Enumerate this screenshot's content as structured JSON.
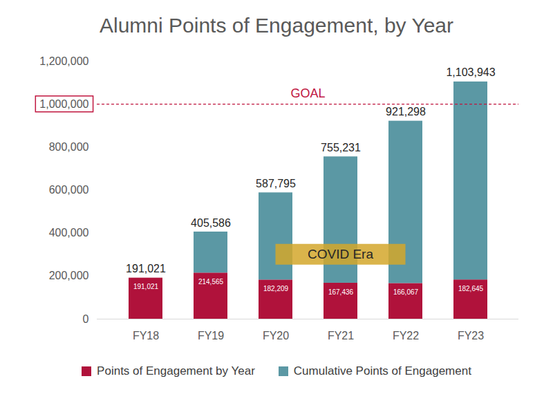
{
  "chart_data": {
    "type": "bar",
    "title": "Alumni Points of Engagement, by Year",
    "categories": [
      "FY18",
      "FY19",
      "FY20",
      "FY21",
      "FY22",
      "FY23"
    ],
    "series": [
      {
        "name": "Points of Engagement by Year",
        "color": "#b0123b",
        "values": [
          191021,
          214565,
          182209,
          167436,
          166067,
          182645
        ],
        "value_labels": [
          "191,021",
          "214,565",
          "182,209",
          "167,436",
          "166,067",
          "182,645"
        ]
      },
      {
        "name": "Cumulative Points of Engagement",
        "color": "#5b98a4",
        "values": [
          0,
          191021,
          405586,
          587795,
          755231,
          921298
        ]
      }
    ],
    "stacked": true,
    "data_labels": true,
    "total_labels": [
      "191,021",
      "405,586",
      "587,795",
      "755,231",
      "921,298",
      "1,103,943"
    ],
    "ylim": [
      0,
      1200000
    ],
    "yticks": [
      0,
      {
        "value": 200000,
        "label": "200,000"
      },
      {
        "value": 400000,
        "label": "400,000"
      },
      {
        "value": 600000,
        "label": "600,000"
      },
      {
        "value": 800000,
        "label": "800,000"
      },
      {
        "value": 1000000,
        "label": "1,000,000"
      },
      {
        "value": 1200000,
        "label": "1,200,000"
      }
    ],
    "grid": false,
    "legend": "bottom",
    "annotations": [
      {
        "text": "GOAL",
        "y": 1000000,
        "color": "#c0163f"
      },
      {
        "text": "COVID Era",
        "x_start": "FY20",
        "x_end": "FY22",
        "y": 300000,
        "color": "#d4a72c"
      }
    ]
  }
}
